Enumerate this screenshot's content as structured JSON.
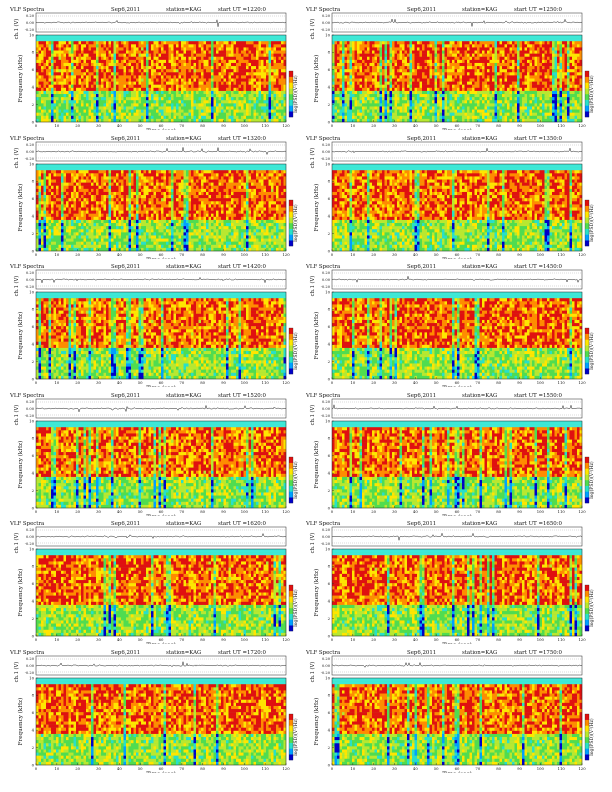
{
  "page": {
    "header_labels": {
      "instrument": "VLF Spectra",
      "date": "Sep6,2011",
      "station": "station=KAG",
      "start_prefix": "start  UT ="
    },
    "axis_text": {
      "channel_label": "ch.1 (V)",
      "channel_ticks": [
        "0.20",
        "0.00",
        "-0.20"
      ],
      "freq_label": "Frequency (kHz)",
      "freq_ticks": [
        "0",
        "2",
        "4",
        "6",
        "8",
        "10"
      ],
      "time_label": "Time (sec)",
      "time_ticks": [
        "0",
        "10",
        "20",
        "30",
        "40",
        "50",
        "60",
        "70",
        "80",
        "90",
        "100",
        "110",
        "120"
      ],
      "colorbar_label": "log(PSD)(V²/Hz)"
    }
  },
  "chart_data": [
    {
      "type": "heatmap",
      "title": "VLF Spectra",
      "date": "Sep6,2011",
      "station": "station=KAG",
      "start_ut": "1220:0",
      "panels": [
        "ch.1 (V) waveform",
        "spectrogram"
      ],
      "x_label": "Time (sec)",
      "xlim": [
        0,
        120
      ],
      "y_label": "Frequency (kHz)",
      "ylim": [
        0,
        10
      ],
      "waveform_ylim": [
        -0.2,
        0.2
      ],
      "colorbar": "log(PSD)(V²/Hz)"
    },
    {
      "type": "heatmap",
      "title": "VLF Spectra",
      "date": "Sep6,2011",
      "station": "station=KAG",
      "start_ut": "1250:0",
      "panels": [
        "ch.1 (V) waveform",
        "spectrogram"
      ],
      "x_label": "Time (sec)",
      "xlim": [
        0,
        120
      ],
      "y_label": "Frequency (kHz)",
      "ylim": [
        0,
        10
      ],
      "waveform_ylim": [
        -0.2,
        0.2
      ],
      "colorbar": "log(PSD)(V²/Hz)"
    },
    {
      "type": "heatmap",
      "title": "VLF Spectra",
      "date": "Sep6,2011",
      "station": "station=KAG",
      "start_ut": "1320:0",
      "panels": [
        "ch.1 (V) waveform",
        "spectrogram"
      ],
      "x_label": "Time (sec)",
      "xlim": [
        0,
        120
      ],
      "y_label": "Frequency (kHz)",
      "ylim": [
        0,
        10
      ],
      "waveform_ylim": [
        -0.2,
        0.2
      ],
      "colorbar": "log(PSD)(V²/Hz)"
    },
    {
      "type": "heatmap",
      "title": "VLF Spectra",
      "date": "Sep6,2011",
      "station": "station=KAG",
      "start_ut": "1350:0",
      "panels": [
        "ch.1 (V) waveform",
        "spectrogram"
      ],
      "x_label": "Time (sec)",
      "xlim": [
        0,
        120
      ],
      "y_label": "Frequency (kHz)",
      "ylim": [
        0,
        10
      ],
      "waveform_ylim": [
        -0.2,
        0.2
      ],
      "colorbar": "log(PSD)(V²/Hz)"
    },
    {
      "type": "heatmap",
      "title": "VLF Spectra",
      "date": "Sep6,2011",
      "station": "station=KAG",
      "start_ut": "1420:0",
      "panels": [
        "ch.1 (V) waveform",
        "spectrogram"
      ],
      "x_label": "Time (sec)",
      "xlim": [
        0,
        120
      ],
      "y_label": "Frequency (kHz)",
      "ylim": [
        0,
        10
      ],
      "waveform_ylim": [
        -0.2,
        0.2
      ],
      "colorbar": "log(PSD)(V²/Hz)"
    },
    {
      "type": "heatmap",
      "title": "VLF Spectra",
      "date": "Sep6,2011",
      "station": "station=KAG",
      "start_ut": "1450:0",
      "panels": [
        "ch.1 (V) waveform",
        "spectrogram"
      ],
      "x_label": "Time (sec)",
      "xlim": [
        0,
        120
      ],
      "y_label": "Frequency (kHz)",
      "ylim": [
        0,
        10
      ],
      "waveform_ylim": [
        -0.2,
        0.2
      ],
      "colorbar": "log(PSD)(V²/Hz)"
    },
    {
      "type": "heatmap",
      "title": "VLF Spectra",
      "date": "Sep6,2011",
      "station": "station=KAG",
      "start_ut": "1520:0",
      "panels": [
        "ch.1 (V) waveform",
        "spectrogram"
      ],
      "x_label": "Time (sec)",
      "xlim": [
        0,
        120
      ],
      "y_label": "Frequency (kHz)",
      "ylim": [
        0,
        10
      ],
      "waveform_ylim": [
        -0.2,
        0.2
      ],
      "colorbar": "log(PSD)(V²/Hz)"
    },
    {
      "type": "heatmap",
      "title": "VLF Spectra",
      "date": "Sep6,2011",
      "station": "station=KAG",
      "start_ut": "1550:0",
      "panels": [
        "ch.1 (V) waveform",
        "spectrogram"
      ],
      "x_label": "Time (sec)",
      "xlim": [
        0,
        120
      ],
      "y_label": "Frequency (kHz)",
      "ylim": [
        0,
        10
      ],
      "waveform_ylim": [
        -0.2,
        0.2
      ],
      "colorbar": "log(PSD)(V²/Hz)"
    },
    {
      "type": "heatmap",
      "title": "VLF Spectra",
      "date": "Sep6,2011",
      "station": "station=KAG",
      "start_ut": "1620:0",
      "panels": [
        "ch.1 (V) waveform",
        "spectrogram"
      ],
      "x_label": "Time (sec)",
      "xlim": [
        0,
        120
      ],
      "y_label": "Frequency (kHz)",
      "ylim": [
        0,
        10
      ],
      "waveform_ylim": [
        -0.2,
        0.2
      ],
      "colorbar": "log(PSD)(V²/Hz)"
    },
    {
      "type": "heatmap",
      "title": "VLF Spectra",
      "date": "Sep6,2011",
      "station": "station=KAG",
      "start_ut": "1650:0",
      "panels": [
        "ch.1 (V) waveform",
        "spectrogram"
      ],
      "x_label": "Time (sec)",
      "xlim": [
        0,
        120
      ],
      "y_label": "Frequency (kHz)",
      "ylim": [
        0,
        10
      ],
      "waveform_ylim": [
        -0.2,
        0.2
      ],
      "colorbar": "log(PSD)(V²/Hz)"
    },
    {
      "type": "heatmap",
      "title": "VLF Spectra",
      "date": "Sep6,2011",
      "station": "station=KAG",
      "start_ut": "1720:0",
      "panels": [
        "ch.1 (V) waveform",
        "spectrogram"
      ],
      "x_label": "Time (sec)",
      "xlim": [
        0,
        120
      ],
      "y_label": "Frequency (kHz)",
      "ylim": [
        0,
        10
      ],
      "waveform_ylim": [
        -0.2,
        0.2
      ],
      "colorbar": "log(PSD)(V²/Hz)"
    },
    {
      "type": "heatmap",
      "title": "VLF Spectra",
      "date": "Sep6,2011",
      "station": "station=KAG",
      "start_ut": "1750:0",
      "panels": [
        "ch.1 (V) waveform",
        "spectrogram"
      ],
      "x_label": "Time (sec)",
      "xlim": [
        0,
        120
      ],
      "y_label": "Frequency (kHz)",
      "ylim": [
        0,
        10
      ],
      "waveform_ylim": [
        -0.2,
        0.2
      ],
      "colorbar": "log(PSD)(V²/Hz)"
    }
  ],
  "colors": {
    "spectrogram_palette": [
      "#0000c8",
      "#00a0ff",
      "#28e0c8",
      "#50dc50",
      "#b8e830",
      "#ffe600",
      "#ff8c00",
      "#e01010"
    ],
    "band_top": "#3ee8d8",
    "waveform": "#222222"
  }
}
